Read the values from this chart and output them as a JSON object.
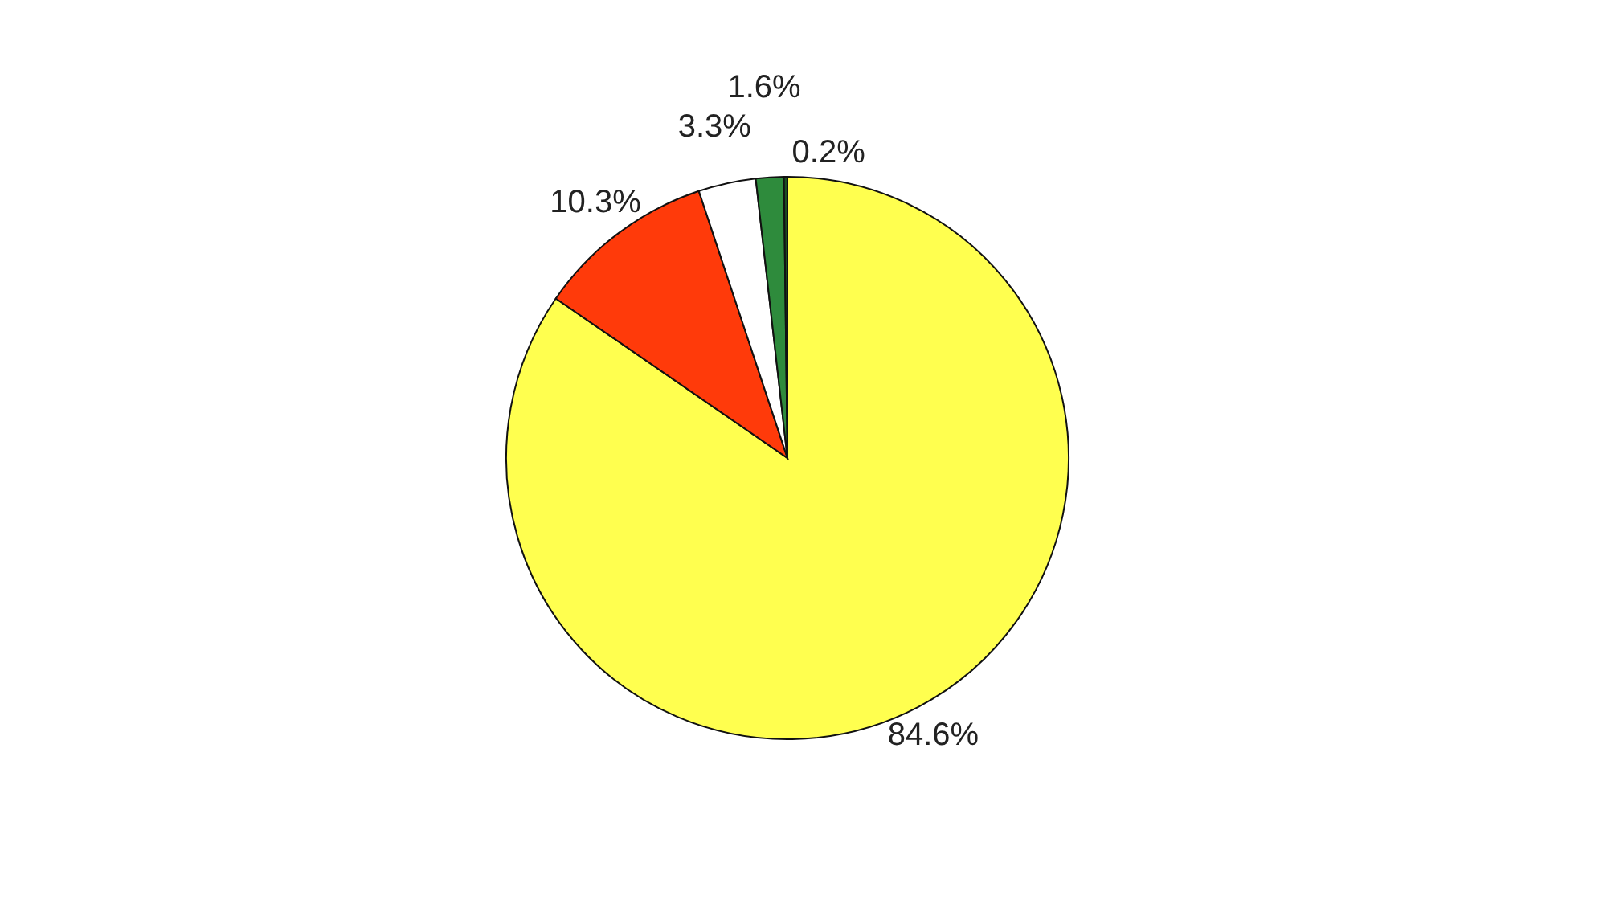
{
  "chart_data": {
    "type": "pie",
    "categories": [
      null,
      null,
      null,
      null,
      null
    ],
    "values": [
      84.6,
      10.3,
      3.3,
      1.6,
      0.2
    ],
    "colors": [
      "#ffff4f",
      "#ff3a0a",
      "#ffffff",
      "#2e8b3c",
      "#1b4d22"
    ],
    "value_labels": [
      "84.6%",
      "10.3%",
      "3.3%",
      "1.6%",
      "0.2%"
    ]
  }
}
